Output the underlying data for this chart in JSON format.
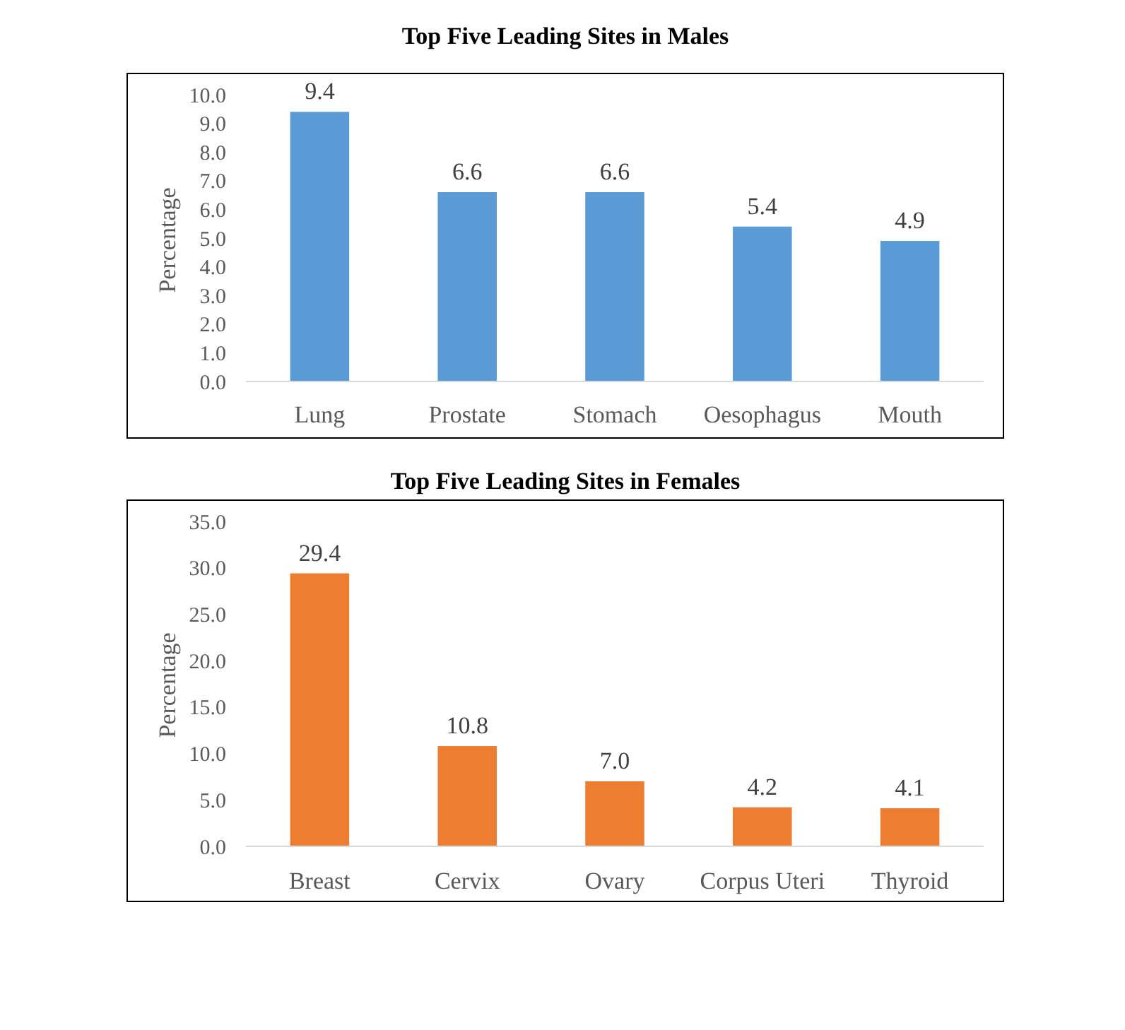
{
  "chart_data": [
    {
      "type": "bar",
      "title": "Top Five Leading Sites in Males",
      "ylabel": "Percentage",
      "categories": [
        "Lung",
        "Prostate",
        "Stomach",
        "Oesophagus",
        "Mouth"
      ],
      "values": [
        9.4,
        6.6,
        6.6,
        5.4,
        4.9
      ],
      "value_labels": [
        "9.4",
        "6.6",
        "6.6",
        "5.4",
        "4.9"
      ],
      "color": "#5b9bd5",
      "ylim": [
        0,
        10
      ],
      "yticks": [
        {
          "value": 0,
          "label": "0.0"
        },
        {
          "value": 1,
          "label": "1.0"
        },
        {
          "value": 2,
          "label": "2.0"
        },
        {
          "value": 3,
          "label": "3.0"
        },
        {
          "value": 4,
          "label": "4.0"
        },
        {
          "value": 5,
          "label": "5.0"
        },
        {
          "value": 6,
          "label": "6.0"
        },
        {
          "value": 7,
          "label": "7.0"
        },
        {
          "value": 8,
          "label": "8.0"
        },
        {
          "value": 9,
          "label": "9.0"
        },
        {
          "value": 10,
          "label": "10.0"
        }
      ]
    },
    {
      "type": "bar",
      "title": "Top Five Leading Sites in Females",
      "ylabel": "Percentage",
      "categories": [
        "Breast",
        "Cervix",
        "Ovary",
        "Corpus Uteri",
        "Thyroid"
      ],
      "values": [
        29.4,
        10.8,
        7.0,
        4.2,
        4.1
      ],
      "value_labels": [
        "29.4",
        "10.8",
        "7.0",
        "4.2",
        "4.1"
      ],
      "color": "#ed7d31",
      "ylim": [
        0,
        35
      ],
      "yticks": [
        {
          "value": 0,
          "label": "0.0"
        },
        {
          "value": 5,
          "label": "5.0"
        },
        {
          "value": 10,
          "label": "10.0"
        },
        {
          "value": 15,
          "label": "15.0"
        },
        {
          "value": 20,
          "label": "20.0"
        },
        {
          "value": 25,
          "label": "25.0"
        },
        {
          "value": 30,
          "label": "30.0"
        },
        {
          "value": 35,
          "label": "35.0"
        }
      ]
    }
  ]
}
